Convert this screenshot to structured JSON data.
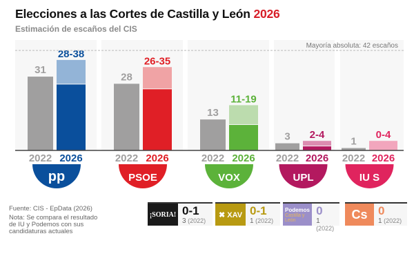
{
  "header": {
    "title": "Elecciones a las Cortes de Castilla y León",
    "title_year": "2026",
    "subtitle": "Estimación de escaños del CIS"
  },
  "chart_data": {
    "type": "bar",
    "title": "Elecciones a las Cortes de Castilla y León 2026",
    "subtitle": "Estimación de escaños del CIS",
    "majority": {
      "value": 42,
      "label": "Mayoría absoluta: 42 escaños"
    },
    "ylim": [
      0,
      45
    ],
    "year_labels": [
      "2022",
      "2026"
    ],
    "parties": [
      {
        "name": "PP",
        "logo": "pp",
        "seats_2022": 31,
        "min_2026": 28,
        "max_2026": 38,
        "label_2022": "31",
        "label_2026": "28-38",
        "color": "#0a4f9c",
        "light": "#93b4d7"
      },
      {
        "name": "PSOE",
        "logo": "PSOE",
        "seats_2022": 28,
        "min_2026": 26,
        "max_2026": 35,
        "label_2022": "28",
        "label_2026": "26-35",
        "color": "#e01f26",
        "light": "#f0a3a5"
      },
      {
        "name": "VOX",
        "logo": "VOX",
        "seats_2022": 13,
        "min_2026": 11,
        "max_2026": 19,
        "label_2022": "13",
        "label_2026": "11-19",
        "color": "#5cb23a",
        "light": "#bcdcae"
      },
      {
        "name": "UPL",
        "logo": "UPL",
        "seats_2022": 3,
        "min_2026": 2,
        "max_2026": 4,
        "label_2022": "3",
        "label_2026": "2-4",
        "color": "#b3195f",
        "light": "#dc8db1"
      },
      {
        "name": "IU-Podemos",
        "logo": "IU S",
        "seats_2022": 1,
        "min_2026": 0,
        "max_2026": 4,
        "label_2022": "1",
        "label_2026": "0-4",
        "color": "#e0245e",
        "light": "#f2a6bd"
      }
    ]
  },
  "footer": {
    "source": "Fuente: CIS - EpData (2026)",
    "note": [
      "Nota: Se compara el resultado",
      "de IU y Podemos con sus",
      "candidaturas actuales"
    ]
  },
  "others": [
    {
      "logo": "¡SORIA!",
      "range": "0-1",
      "prev": "3",
      "prev_year": "(2022)",
      "logo_bg": "#1a1a1a",
      "color": "#111"
    },
    {
      "logo": "✖ XAV",
      "range": "0-1",
      "prev": "1",
      "prev_year": "(2022)",
      "logo_bg": "#b89a12",
      "color": "#b89a12"
    },
    {
      "logo": "Podemos",
      "logo_sub": "Castilla y León",
      "range": "0",
      "prev": "1",
      "prev_year": "(2022)",
      "logo_bg": "#9b8fc9",
      "color": "#9b8fc9"
    },
    {
      "logo": "Cs",
      "range": "0",
      "prev": "1",
      "prev_year": "(2022)",
      "logo_bg": "#ef8a5c",
      "color": "#ef8a5c"
    }
  ]
}
